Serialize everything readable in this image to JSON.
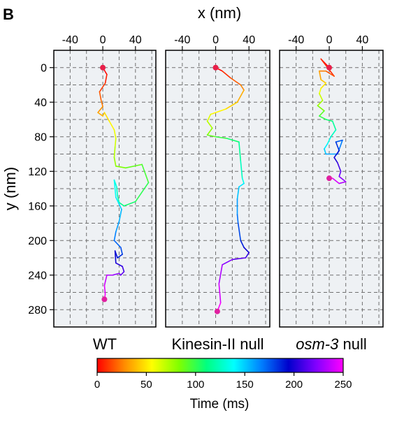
{
  "panel_label": "B",
  "chart_data": {
    "type": "line",
    "xlabel": "x (nm)",
    "ylabel": "y (nm)",
    "xlim": [
      -60,
      65
    ],
    "ylim": [
      -20,
      300
    ],
    "x_ticks": [
      "-40",
      "0",
      "40"
    ],
    "x_tick_values": [
      -40,
      0,
      40
    ],
    "y_ticks": [
      "0",
      "40",
      "80",
      "120",
      "160",
      "200",
      "240",
      "280"
    ],
    "y_tick_values": [
      0,
      40,
      80,
      120,
      160,
      200,
      240,
      280
    ],
    "grid": true,
    "y_inverted": true,
    "colorbar": {
      "label": "Time (ms)",
      "ticks": [
        "0",
        "50",
        "100",
        "150",
        "200",
        "250"
      ],
      "tick_values": [
        0,
        50,
        100,
        150,
        200,
        250
      ],
      "range": [
        0,
        250
      ],
      "colors": [
        "#ff0000",
        "#ff8c00",
        "#ffff00",
        "#7fff00",
        "#00ff80",
        "#00ffff",
        "#0080ff",
        "#0000cc",
        "#8000ff",
        "#ff00ff"
      ]
    },
    "panels": [
      {
        "name": "WT",
        "name_style": "normal",
        "start_color": "#e8204a",
        "end_color": "#e020a0",
        "points": [
          [
            0,
            0
          ],
          [
            5,
            8
          ],
          [
            3,
            18
          ],
          [
            -4,
            28
          ],
          [
            -2,
            38
          ],
          [
            0,
            45
          ],
          [
            -6,
            52
          ],
          [
            0,
            56
          ],
          [
            2,
            52
          ],
          [
            8,
            62
          ],
          [
            14,
            72
          ],
          [
            16,
            82
          ],
          [
            15,
            92
          ],
          [
            14,
            104
          ],
          [
            16,
            114
          ],
          [
            28,
            116
          ],
          [
            48,
            112
          ],
          [
            56,
            133
          ],
          [
            40,
            155
          ],
          [
            26,
            160
          ],
          [
            20,
            156
          ],
          [
            18,
            148
          ],
          [
            17,
            138
          ],
          [
            14,
            130
          ],
          [
            16,
            150
          ],
          [
            20,
            158
          ],
          [
            23,
            164
          ],
          [
            20,
            178
          ],
          [
            16,
            190
          ],
          [
            14,
            200
          ],
          [
            22,
            208
          ],
          [
            24,
            216
          ],
          [
            18,
            220
          ],
          [
            15,
            212
          ],
          [
            16,
            226
          ],
          [
            24,
            230
          ],
          [
            26,
            236
          ],
          [
            22,
            240
          ],
          [
            20,
            238
          ],
          [
            12,
            240
          ],
          [
            5,
            240
          ],
          [
            2,
            252
          ],
          [
            3,
            262
          ],
          [
            2,
            268
          ]
        ]
      },
      {
        "name": "Kinesin-II null",
        "name_style": "normal",
        "start_color": "#e8204a",
        "end_color": "#e020a0",
        "points": [
          [
            0,
            0
          ],
          [
            8,
            4
          ],
          [
            18,
            12
          ],
          [
            30,
            20
          ],
          [
            34,
            26
          ],
          [
            26,
            40
          ],
          [
            12,
            48
          ],
          [
            -6,
            54
          ],
          [
            -10,
            62
          ],
          [
            -4,
            70
          ],
          [
            -10,
            78
          ],
          [
            0,
            80
          ],
          [
            14,
            82
          ],
          [
            28,
            86
          ],
          [
            30,
            108
          ],
          [
            32,
            128
          ],
          [
            34,
            134
          ],
          [
            28,
            138
          ],
          [
            26,
            152
          ],
          [
            26,
            170
          ],
          [
            27,
            180
          ],
          [
            30,
            200
          ],
          [
            34,
            208
          ],
          [
            40,
            214
          ],
          [
            36,
            220
          ],
          [
            20,
            222
          ],
          [
            8,
            228
          ],
          [
            4,
            250
          ],
          [
            6,
            272
          ],
          [
            2,
            282
          ]
        ]
      },
      {
        "name": "osm-3",
        "name_suffix": " null",
        "name_style": "italic",
        "start_color": "#e8204a",
        "end_color": "#e020a0",
        "points": [
          [
            0,
            0
          ],
          [
            -10,
            -10
          ],
          [
            6,
            10
          ],
          [
            -4,
            4
          ],
          [
            -12,
            4
          ],
          [
            -10,
            14
          ],
          [
            -4,
            18
          ],
          [
            -10,
            24
          ],
          [
            -12,
            30
          ],
          [
            -8,
            38
          ],
          [
            -14,
            44
          ],
          [
            -6,
            50
          ],
          [
            -12,
            56
          ],
          [
            -4,
            60
          ],
          [
            4,
            62
          ],
          [
            8,
            72
          ],
          [
            2,
            80
          ],
          [
            -2,
            88
          ],
          [
            -6,
            94
          ],
          [
            -4,
            100
          ],
          [
            10,
            100
          ],
          [
            16,
            84
          ],
          [
            8,
            86
          ],
          [
            12,
            96
          ],
          [
            6,
            104
          ],
          [
            10,
            110
          ],
          [
            14,
            120
          ],
          [
            12,
            126
          ],
          [
            20,
            132
          ],
          [
            12,
            134
          ],
          [
            4,
            128
          ],
          [
            0,
            128
          ]
        ]
      }
    ]
  }
}
